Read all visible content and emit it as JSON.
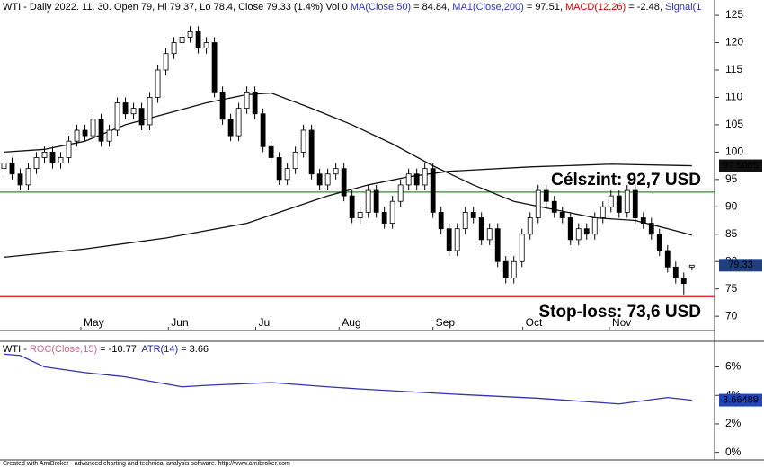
{
  "chart_data": [
    {
      "type": "candlestick",
      "header": [
        {
          "text": "WTI - Daily 2022. 11. 30. Open 79, Hi 79.37, Lo 78.4, Close 79.33 (1.4%) Vol 0 ",
          "color": "#000000"
        },
        {
          "text": "MA(Close,50)",
          "color": "#3333bb"
        },
        {
          "text": " = 84.84, ",
          "color": "#000000"
        },
        {
          "text": "MA1(Close,200)",
          "color": "#3333bb"
        },
        {
          "text": " = 97.51, ",
          "color": "#000000"
        },
        {
          "text": "MACD(12,26)",
          "color": "#cc0000"
        },
        {
          "text": " = -2.48, ",
          "color": "#000000"
        },
        {
          "text": "Signal(1",
          "color": "#3333bb"
        }
      ],
      "open": [
        97,
        98,
        96,
        94,
        97,
        99,
        100,
        98,
        99,
        102,
        104,
        103,
        106,
        102,
        104,
        109,
        107,
        108,
        105,
        110,
        115,
        118,
        120,
        121,
        122,
        119,
        120,
        111,
        106,
        103,
        108,
        111,
        107,
        101,
        99,
        95,
        97,
        100,
        104,
        96,
        94,
        96,
        97,
        92,
        88,
        89,
        93,
        89,
        87,
        91,
        94,
        96,
        94,
        97,
        89,
        86,
        82,
        86,
        89,
        88,
        84,
        86,
        80,
        77,
        80,
        85,
        88,
        93,
        91,
        89,
        88,
        84,
        86,
        85,
        88,
        90,
        92,
        89,
        93,
        88,
        87,
        85,
        82,
        79,
        77,
        79
      ],
      "high": [
        99,
        99,
        97,
        98,
        100,
        101,
        101,
        100,
        103,
        105,
        105,
        107,
        107,
        105,
        110,
        110,
        109,
        109,
        111,
        116,
        119,
        121,
        122,
        123,
        123,
        121,
        121,
        112,
        107,
        109,
        112,
        112,
        108,
        102,
        100,
        98,
        101,
        105,
        105,
        97,
        97,
        98,
        98,
        93,
        90,
        94,
        94,
        90,
        92,
        95,
        97,
        97,
        98,
        98,
        90,
        87,
        87,
        90,
        90,
        89,
        87,
        87,
        81,
        81,
        86,
        89,
        94,
        94,
        92,
        90,
        89,
        87,
        87,
        89,
        91,
        93,
        93,
        94,
        94,
        89,
        88,
        86,
        83,
        80,
        78,
        79.37
      ],
      "low": [
        96,
        95,
        93,
        93,
        96,
        98,
        97,
        97,
        98,
        101,
        102,
        102,
        101,
        101,
        103,
        106,
        106,
        104,
        104,
        109,
        114,
        117,
        119,
        120,
        118,
        118,
        110,
        105,
        102,
        102,
        107,
        106,
        100,
        98,
        94,
        94,
        96,
        99,
        95,
        93,
        93,
        95,
        91,
        87,
        87,
        88,
        88,
        86,
        86,
        90,
        93,
        93,
        93,
        88,
        85,
        81,
        81,
        85,
        87,
        83,
        83,
        79,
        76,
        76,
        79,
        84,
        87,
        90,
        88,
        87,
        83,
        83,
        84,
        84,
        87,
        89,
        88,
        88,
        87,
        86,
        84,
        81,
        78,
        76,
        74,
        78.4
      ],
      "close": [
        98,
        96,
        94,
        97,
        99,
        100,
        98,
        99,
        102,
        104,
        103,
        106,
        102,
        104,
        109,
        107,
        108,
        105,
        110,
        115,
        118,
        120,
        121,
        122,
        119,
        120,
        111,
        106,
        103,
        108,
        111,
        107,
        101,
        99,
        95,
        97,
        100,
        104,
        96,
        94,
        96,
        97,
        92,
        88,
        89,
        93,
        89,
        87,
        91,
        94,
        96,
        94,
        97,
        89,
        86,
        82,
        86,
        89,
        88,
        84,
        86,
        80,
        77,
        80,
        85,
        88,
        93,
        91,
        89,
        88,
        84,
        86,
        85,
        88,
        90,
        92,
        89,
        93,
        88,
        87,
        85,
        82,
        79,
        77,
        76,
        79.33
      ],
      "series": [
        {
          "color": "#111111",
          "x": [
            0,
            5,
            10,
            15,
            20,
            25,
            30,
            33,
            38,
            43,
            48,
            53,
            58,
            63,
            68,
            73,
            78,
            82,
            85
          ],
          "values": [
            100,
            100.5,
            102,
            105,
            107,
            109,
            110.5,
            110.8,
            108,
            105,
            101.5,
            97.5,
            94,
            91,
            89.5,
            88,
            87.5,
            86,
            84.84
          ]
        },
        {
          "color": "#111111",
          "x": [
            0,
            10,
            20,
            30,
            35,
            40,
            45,
            50,
            55,
            65,
            75,
            85
          ],
          "values": [
            80.8,
            82.3,
            84.3,
            87,
            89.5,
            92,
            94,
            95.5,
            96.5,
            97.3,
            97.8,
            97.51
          ]
        }
      ],
      "hlines": [
        {
          "value": 92.7,
          "color": "#2e8b2e",
          "label": "Célszint: 92,7 USD"
        },
        {
          "value": 73.6,
          "color": "#dd1111",
          "label": "Stop-loss: 73,6 USD"
        }
      ],
      "last_values": [
        {
          "value": 97.5085,
          "color": "#111111"
        },
        {
          "value": 79.33,
          "color": "#1f3f7f"
        }
      ],
      "xlim": [
        -0.5,
        87.8
      ],
      "ylim": [
        67.4,
        127.8
      ],
      "yticks": [
        70,
        75,
        80,
        85,
        90,
        95,
        100,
        105,
        110,
        115,
        120,
        125
      ],
      "xticks": [
        {
          "value": 9.5,
          "label": "May"
        },
        {
          "value": 20.3,
          "label": "Jun"
        },
        {
          "value": 31.1,
          "label": "Jul"
        },
        {
          "value": 41.4,
          "label": "Aug"
        },
        {
          "value": 53,
          "label": "Sep"
        },
        {
          "value": 64.1,
          "label": "Oct"
        },
        {
          "value": 74.8,
          "label": "Nov"
        }
      ]
    },
    {
      "type": "line",
      "header": [
        {
          "text": "WTI - ",
          "color": "#000000"
        },
        {
          "text": "ROC(Close,15)",
          "color": "#cc6688"
        },
        {
          "text": " = -10.77, ",
          "color": "#000000"
        },
        {
          "text": "ATR(14)",
          "color": "#2222aa"
        },
        {
          "text": " = 3.66",
          "color": "#000000"
        }
      ],
      "series": [
        {
          "color": "#3333aa",
          "x": [
            0,
            2,
            5,
            10,
            15,
            22,
            25,
            33,
            40,
            44,
            55,
            66,
            76,
            82,
            85
          ],
          "values": [
            6.9,
            6.8,
            6.0,
            5.6,
            5.3,
            4.6,
            4.7,
            4.9,
            4.6,
            4.45,
            4.1,
            3.8,
            3.4,
            3.85,
            3.66
          ]
        }
      ],
      "last_values": [
        {
          "value": 3.66489,
          "color": "#2244bb"
        }
      ],
      "xlim": [
        -0.5,
        87.8
      ],
      "ylim": [
        -0.4,
        7.8
      ],
      "yticks": [
        {
          "value": 0,
          "label": "0%"
        },
        {
          "value": 2,
          "label": "2%"
        },
        {
          "value": 4,
          "label": "4%"
        },
        {
          "value": 6,
          "label": "6%"
        }
      ]
    }
  ],
  "footer": "Created with AmiBroker - advanced charting and technical analysis software. http://www.amibroker.com"
}
